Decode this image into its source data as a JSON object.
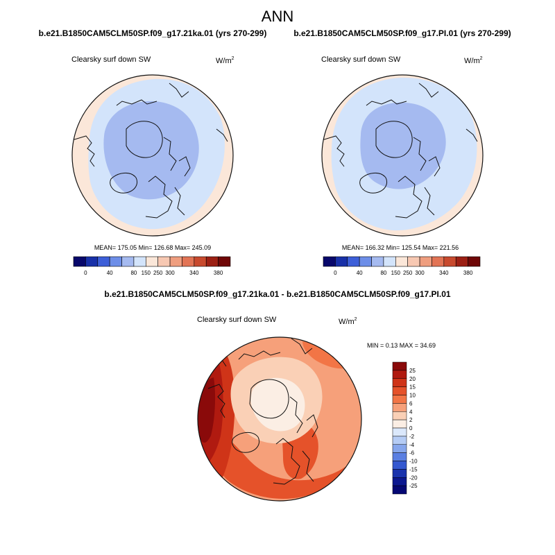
{
  "figure": {
    "title": "ANN",
    "difference_title": "b.e21.B1850CAM5CLM50SP.f09_g17.21ka.01 - b.e21.B1850CAM5CLM50SP.f09_g17.PI.01"
  },
  "chart_data": [
    {
      "type": "polar-map",
      "projection": "north-polar-stereographic",
      "title": "b.e21.B1850CAM5CLM50SP.f09_g17.21ka.01 (yrs 270-299)",
      "variable_label": "Clearsky surf down SW",
      "units_base": "W/m",
      "units_exp": "2",
      "stats": {
        "mean": "175.05",
        "min": "126.68",
        "max": "245.09"
      },
      "stats_text": "MEAN= 175.05  Min= 126.68  Max= 245.09",
      "colorbar": {
        "orientation": "horizontal",
        "labels": [
          "0",
          "40",
          "80",
          "150",
          "250",
          "300",
          "340",
          "380"
        ],
        "colors": [
          "#08086b",
          "#1830a8",
          "#3d5fd8",
          "#6d8ee8",
          "#a5baf0",
          "#d3e4fb",
          "#fbe7d9",
          "#f7c8b2",
          "#ef9e7f",
          "#e27455",
          "#c84a2e",
          "#9c2014",
          "#6f0707"
        ]
      }
    },
    {
      "type": "polar-map",
      "projection": "north-polar-stereographic",
      "title": "b.e21.B1850CAM5CLM50SP.f09_g17.PI.01 (yrs 270-299)",
      "variable_label": "Clearsky surf down SW",
      "units_base": "W/m",
      "units_exp": "2",
      "stats": {
        "mean": "166.32",
        "min": "125.54",
        "max": "221.56"
      },
      "stats_text": "MEAN= 166.32  Min= 125.54  Max= 221.56",
      "colorbar": {
        "orientation": "horizontal",
        "labels": [
          "0",
          "40",
          "80",
          "150",
          "250",
          "300",
          "340",
          "380"
        ],
        "colors": [
          "#08086b",
          "#1830a8",
          "#3d5fd8",
          "#6d8ee8",
          "#a5baf0",
          "#d3e4fb",
          "#fbe7d9",
          "#f7c8b2",
          "#ef9e7f",
          "#e27455",
          "#c84a2e",
          "#9c2014",
          "#6f0707"
        ]
      }
    },
    {
      "type": "polar-map",
      "projection": "north-polar-stereographic",
      "title": "b.e21.B1850CAM5CLM50SP.f09_g17.21ka.01 - b.e21.B1850CAM5CLM50SP.f09_g17.PI.01",
      "variable_label": "Clearsky surf down SW",
      "units_base": "W/m",
      "units_exp": "2",
      "stats": {
        "min": "0.13",
        "max": "34.69"
      },
      "stats_text": "MIN =   0.13 MAX =  34.69",
      "colorbar": {
        "orientation": "vertical",
        "labels": [
          "25",
          "20",
          "15",
          "10",
          "6",
          "4",
          "2",
          "0",
          "-2",
          "-4",
          "-6",
          "-10",
          "-15",
          "-20",
          "-25"
        ],
        "colors": [
          "#8a0a0a",
          "#b01a10",
          "#cf3418",
          "#e5522a",
          "#f27546",
          "#f6a07a",
          "#fad0b6",
          "#fbeee4",
          "#dbe8fb",
          "#b5ccf5",
          "#86a6ec",
          "#5a7fe2",
          "#3458d0",
          "#1a33ad",
          "#0c1890",
          "#050874"
        ]
      }
    }
  ]
}
